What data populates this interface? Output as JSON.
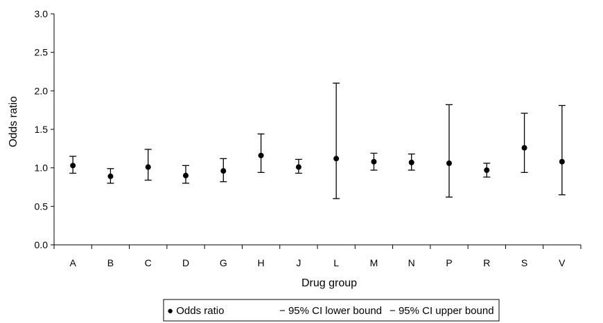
{
  "chart_data": {
    "type": "scatter",
    "title": "",
    "xlabel": "Drug group",
    "ylabel": "Odds ratio",
    "ylim": [
      0.0,
      3.0
    ],
    "yticks": [
      "0.0",
      "0.5",
      "1.0",
      "1.5",
      "2.0",
      "2.5",
      "3.0"
    ],
    "grid": false,
    "categories": [
      "A",
      "B",
      "C",
      "D",
      "G",
      "H",
      "J",
      "L",
      "M",
      "N",
      "P",
      "R",
      "S",
      "V"
    ],
    "series": [
      {
        "name": "Odds ratio",
        "values": [
          1.03,
          0.89,
          1.01,
          0.9,
          0.96,
          1.16,
          1.01,
          1.12,
          1.08,
          1.07,
          1.06,
          0.97,
          1.26,
          1.08
        ]
      },
      {
        "name": "95% CI lower bound",
        "values": [
          0.93,
          0.8,
          0.84,
          0.8,
          0.82,
          0.94,
          0.93,
          0.6,
          0.97,
          0.97,
          0.62,
          0.88,
          0.94,
          0.65
        ]
      },
      {
        "name": "95% CI upper bound",
        "values": [
          1.15,
          0.99,
          1.24,
          1.03,
          1.12,
          1.44,
          1.11,
          2.1,
          1.19,
          1.18,
          1.82,
          1.06,
          1.71,
          1.81
        ]
      }
    ],
    "legend": {
      "position": "bottom",
      "items": [
        {
          "symbol": "●",
          "label": "Odds ratio"
        },
        {
          "symbol": "−",
          "label": "95% CI lower bound"
        },
        {
          "symbol": "−",
          "label": "95% CI upper bound"
        }
      ]
    }
  }
}
